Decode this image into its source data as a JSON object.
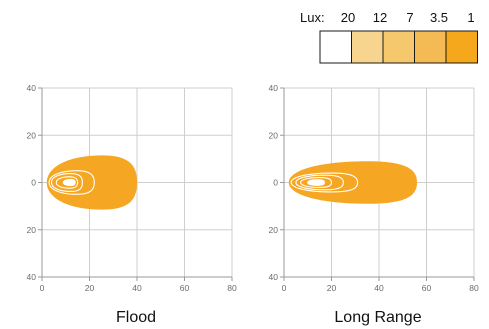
{
  "legend": {
    "title": "Lux:",
    "levels": [
      {
        "value": "20",
        "color": "#ffffff"
      },
      {
        "value": "12",
        "color": "#f8d58f"
      },
      {
        "value": "7",
        "color": "#f6c86e"
      },
      {
        "value": "3.5",
        "color": "#f4bb54"
      },
      {
        "value": "1",
        "color": "#f6a81c"
      }
    ],
    "border_color": "#1a1a1a"
  },
  "colors": {
    "grid": "#cfcfcf",
    "axis": "#9a9a9a",
    "outer_contour": "#f5a623",
    "contour_line": "#ffffff"
  },
  "chart_data": [
    {
      "type": "heatmap",
      "title": "Flood",
      "x_ticks": [
        "0",
        "20",
        "40",
        "60",
        "80"
      ],
      "y_ticks": [
        "40",
        "20",
        "0",
        "20",
        "40"
      ],
      "xlim": [
        0,
        80
      ],
      "ylim": [
        -40,
        40
      ],
      "grid": true,
      "contours": [
        {
          "lux": "1",
          "x_min": 2,
          "x_max": 40,
          "y_max": 11.5
        },
        {
          "lux": "3.5",
          "x_min": 3,
          "x_max": 22,
          "y_max": 5
        },
        {
          "lux": "7",
          "x_min": 4,
          "x_max": 17,
          "y_max": 3.8
        },
        {
          "lux": "12",
          "x_min": 6,
          "x_max": 15,
          "y_max": 2.4
        },
        {
          "lux": "20",
          "x_min": 9,
          "x_max": 14,
          "y_max": 1.3
        }
      ]
    },
    {
      "type": "heatmap",
      "title": "Long Range",
      "x_ticks": [
        "0",
        "20",
        "40",
        "60",
        "80"
      ],
      "y_ticks": [
        "40",
        "20",
        "0",
        "20",
        "40"
      ],
      "xlim": [
        0,
        80
      ],
      "ylim": [
        -40,
        40
      ],
      "grid": true,
      "contours": [
        {
          "lux": "1",
          "x_min": 2,
          "x_max": 56,
          "y_max": 9
        },
        {
          "lux": "3.5",
          "x_min": 3,
          "x_max": 31,
          "y_max": 4
        },
        {
          "lux": "7",
          "x_min": 5,
          "x_max": 25,
          "y_max": 3.1
        },
        {
          "lux": "12",
          "x_min": 7,
          "x_max": 20,
          "y_max": 2.1
        },
        {
          "lux": "20",
          "x_min": 10,
          "x_max": 17,
          "y_max": 1.2
        }
      ]
    }
  ]
}
